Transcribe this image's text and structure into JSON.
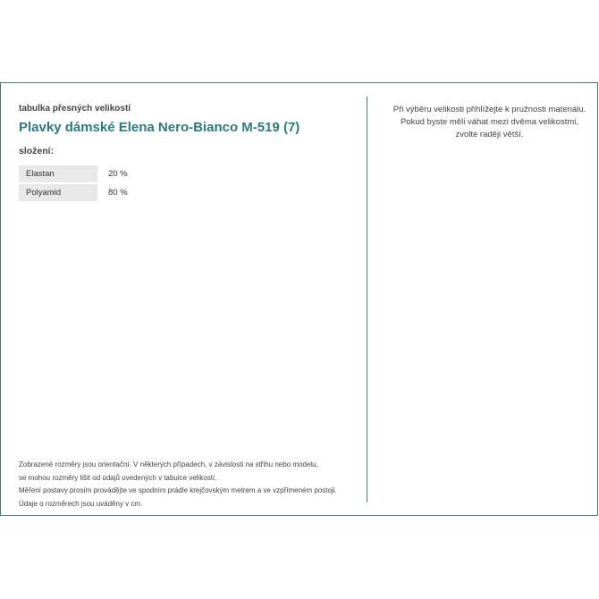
{
  "subtitle": "tabulka přesných velikostí",
  "title": "Plavky dámské Elena Nero-Bianco M-519 (7)",
  "composition_label": "složení:",
  "composition": [
    {
      "material": "Elastan",
      "percent": "20 %"
    },
    {
      "material": "Polyamid",
      "percent": "80 %"
    }
  ],
  "advice": [
    "Při výběru velikosti přihlížejte k pružnosti materiálu.",
    "Pokud byste měli váhat mezi dvěma velikostmi,",
    "zvolte raději větší."
  ],
  "notes": [
    "Zobrazené rozměry jsou orientační. V některých případech, v závislosti na střihu nebo modelu,",
    "se mohou rozměry lišit od údajů uvedených v tabulce velikostí.",
    "Měření postavy prosím provádějte ve spodním prádle krejčovským metrem a ve vzpřímeném postoji.",
    "Údaje o rozměrech jsou uváděny v cm."
  ],
  "colors": {
    "accent": "#2a7a7e",
    "border": "#3d7a78"
  }
}
